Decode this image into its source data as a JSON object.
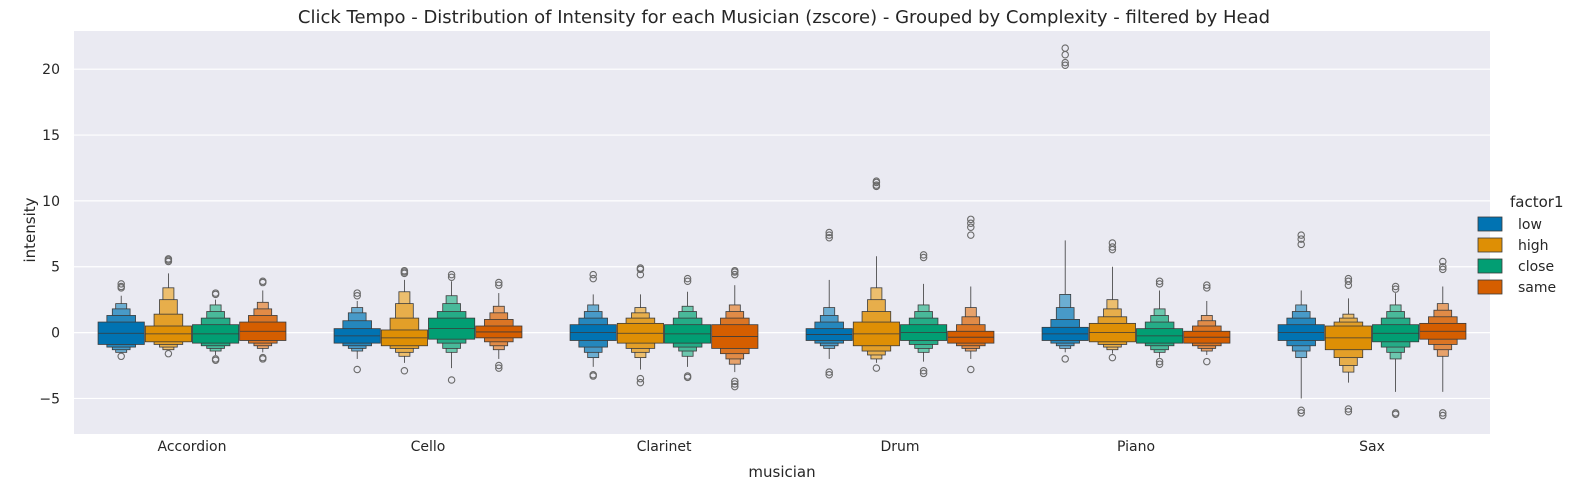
{
  "chart_data": {
    "type": "boxen",
    "title": "Click Tempo - Distribution of Intensity for each Musician (zscore) - Grouped by Complexity - filtered by Head",
    "xlabel": "musician",
    "ylabel": "intensity",
    "ylim": [
      -7.7,
      22.9
    ],
    "yticks": [
      -5,
      0,
      5,
      10,
      15,
      20
    ],
    "grid": true,
    "legend_title": "factor1",
    "legend_position": "right",
    "categories": [
      "Accordion",
      "Cello",
      "Clarinet",
      "Drum",
      "Piano",
      "Sax"
    ],
    "series": [
      {
        "name": "low",
        "color": "#0173b2",
        "values": [
          {
            "levels": [
              [
                -0.9,
                0.8
              ],
              [
                -1.1,
                1.3
              ],
              [
                -1.3,
                1.8
              ],
              [
                -1.5,
                2.2
              ]
            ],
            "whisker": [
              -1.6,
              2.8
            ],
            "outliers": [
              -1.8,
              3.4,
              3.5,
              3.7
            ]
          },
          {
            "levels": [
              [
                -0.8,
                0.3
              ],
              [
                -1.0,
                0.9
              ],
              [
                -1.2,
                1.5
              ],
              [
                -1.4,
                1.9
              ]
            ],
            "whisker": [
              -2.0,
              2.4
            ],
            "outliers": [
              -2.8,
              2.8,
              3.0
            ]
          },
          {
            "levels": [
              [
                -0.6,
                0.6
              ],
              [
                -1.1,
                1.1
              ],
              [
                -1.5,
                1.6
              ],
              [
                -1.9,
                2.1
              ]
            ],
            "whisker": [
              -2.6,
              2.9
            ],
            "outliers": [
              -3.2,
              -3.3,
              4.1,
              4.4
            ]
          },
          {
            "levels": [
              [
                -0.6,
                0.3
              ],
              [
                -0.8,
                0.8
              ],
              [
                -1.0,
                1.3
              ],
              [
                -1.2,
                1.9
              ]
            ],
            "whisker": [
              -2.0,
              4.0
            ],
            "outliers": [
              -3.0,
              -3.2,
              7.2,
              7.4,
              7.6
            ]
          },
          {
            "levels": [
              [
                -0.6,
                0.4
              ],
              [
                -0.8,
                1.0
              ],
              [
                -1.0,
                1.9
              ],
              [
                -1.2,
                2.9
              ]
            ],
            "whisker": [
              -1.5,
              7.0
            ],
            "outliers": [
              -2.0,
              20.3,
              20.5,
              21.1,
              21.6
            ]
          },
          {
            "levels": [
              [
                -0.6,
                0.6
              ],
              [
                -1.0,
                1.1
              ],
              [
                -1.4,
                1.6
              ],
              [
                -1.9,
                2.1
              ]
            ],
            "whisker": [
              -5.0,
              3.2
            ],
            "outliers": [
              -5.9,
              -6.1,
              6.7,
              7.1,
              7.4
            ]
          }
        ]
      },
      {
        "name": "high",
        "color": "#de8f05",
        "values": [
          {
            "levels": [
              [
                -0.7,
                0.5
              ],
              [
                -0.9,
                1.4
              ],
              [
                -1.1,
                2.5
              ],
              [
                -1.3,
                3.4
              ]
            ],
            "whisker": [
              -1.4,
              4.5
            ],
            "outliers": [
              -1.6,
              5.4,
              5.5,
              5.6
            ]
          },
          {
            "levels": [
              [
                -1.0,
                0.2
              ],
              [
                -1.2,
                1.1
              ],
              [
                -1.5,
                2.2
              ],
              [
                -1.8,
                3.1
              ]
            ],
            "whisker": [
              -2.3,
              4.0
            ],
            "outliers": [
              -2.9,
              4.5,
              4.6,
              4.7
            ]
          },
          {
            "levels": [
              [
                -0.8,
                0.7
              ],
              [
                -1.2,
                1.1
              ],
              [
                -1.5,
                1.5
              ],
              [
                -1.9,
                1.9
              ]
            ],
            "whisker": [
              -2.8,
              2.9
            ],
            "outliers": [
              -3.5,
              -3.8,
              4.4,
              4.8,
              4.9
            ]
          },
          {
            "levels": [
              [
                -1.0,
                0.8
              ],
              [
                -1.4,
                1.6
              ],
              [
                -1.7,
                2.5
              ],
              [
                -2.0,
                3.4
              ]
            ],
            "whisker": [
              -2.3,
              5.8
            ],
            "outliers": [
              -2.7,
              11.1,
              11.2,
              11.4,
              11.5
            ]
          },
          {
            "levels": [
              [
                -0.7,
                0.7
              ],
              [
                -0.9,
                1.2
              ],
              [
                -1.1,
                1.8
              ],
              [
                -1.3,
                2.5
              ]
            ],
            "whisker": [
              -1.6,
              5.0
            ],
            "outliers": [
              -1.9,
              6.3,
              6.5,
              6.8
            ]
          },
          {
            "levels": [
              [
                -1.3,
                0.5
              ],
              [
                -1.9,
                0.8
              ],
              [
                -2.5,
                1.1
              ],
              [
                -3.0,
                1.4
              ]
            ],
            "whisker": [
              -3.8,
              2.6
            ],
            "outliers": [
              -5.8,
              -6.0,
              3.6,
              3.9,
              4.1
            ]
          }
        ]
      },
      {
        "name": "close",
        "color": "#029e73",
        "values": [
          {
            "levels": [
              [
                -0.8,
                0.6
              ],
              [
                -1.0,
                1.1
              ],
              [
                -1.2,
                1.6
              ],
              [
                -1.4,
                2.1
              ]
            ],
            "whisker": [
              -1.7,
              2.5
            ],
            "outliers": [
              -2.0,
              -2.1,
              2.9,
              3.0
            ]
          },
          {
            "levels": [
              [
                -0.5,
                1.1
              ],
              [
                -0.8,
                1.6
              ],
              [
                -1.2,
                2.2
              ],
              [
                -1.5,
                2.8
              ]
            ],
            "whisker": [
              -2.7,
              3.9
            ],
            "outliers": [
              -3.6,
              4.2,
              4.4
            ]
          },
          {
            "levels": [
              [
                -0.8,
                0.6
              ],
              [
                -1.1,
                1.1
              ],
              [
                -1.4,
                1.6
              ],
              [
                -1.8,
                2.0
              ]
            ],
            "whisker": [
              -2.6,
              3.1
            ],
            "outliers": [
              -3.3,
              -3.4,
              3.9,
              4.1
            ]
          },
          {
            "levels": [
              [
                -0.6,
                0.6
              ],
              [
                -0.9,
                1.1
              ],
              [
                -1.2,
                1.6
              ],
              [
                -1.5,
                2.1
              ]
            ],
            "whisker": [
              -2.2,
              3.7
            ],
            "outliers": [
              -2.9,
              -3.1,
              5.7,
              5.9
            ]
          },
          {
            "levels": [
              [
                -0.8,
                0.3
              ],
              [
                -1.0,
                0.8
              ],
              [
                -1.3,
                1.3
              ],
              [
                -1.5,
                1.8
              ]
            ],
            "whisker": [
              -1.9,
              3.2
            ],
            "outliers": [
              -2.2,
              -2.4,
              3.7,
              3.9
            ]
          },
          {
            "levels": [
              [
                -0.7,
                0.6
              ],
              [
                -1.1,
                1.1
              ],
              [
                -1.5,
                1.6
              ],
              [
                -2.0,
                2.1
              ]
            ],
            "whisker": [
              -4.5,
              3.0
            ],
            "outliers": [
              -6.1,
              -6.2,
              3.3,
              3.5
            ]
          }
        ]
      },
      {
        "name": "same",
        "color": "#d55e00",
        "values": [
          {
            "levels": [
              [
                -0.6,
                0.8
              ],
              [
                -0.8,
                1.3
              ],
              [
                -1.0,
                1.8
              ],
              [
                -1.2,
                2.3
              ]
            ],
            "whisker": [
              -1.5,
              3.2
            ],
            "outliers": [
              -1.9,
              -2.0,
              3.8,
              3.9
            ]
          },
          {
            "levels": [
              [
                -0.4,
                0.5
              ],
              [
                -0.7,
                1.0
              ],
              [
                -1.0,
                1.5
              ],
              [
                -1.3,
                2.0
              ]
            ],
            "whisker": [
              -2.0,
              3.0
            ],
            "outliers": [
              -2.5,
              -2.7,
              3.6,
              3.8
            ]
          },
          {
            "levels": [
              [
                -1.2,
                0.6
              ],
              [
                -1.6,
                1.1
              ],
              [
                -2.0,
                1.6
              ],
              [
                -2.4,
                2.1
              ]
            ],
            "whisker": [
              -3.0,
              3.6
            ],
            "outliers": [
              -3.7,
              -3.9,
              -4.1,
              4.4,
              4.6,
              4.7
            ]
          },
          {
            "levels": [
              [
                -0.8,
                0.1
              ],
              [
                -1.0,
                0.6
              ],
              [
                -1.2,
                1.2
              ],
              [
                -1.4,
                1.9
              ]
            ],
            "whisker": [
              -2.0,
              3.5
            ],
            "outliers": [
              -2.8,
              7.4,
              8.0,
              8.3,
              8.6
            ]
          },
          {
            "levels": [
              [
                -0.8,
                0.1
              ],
              [
                -1.0,
                0.5
              ],
              [
                -1.2,
                0.9
              ],
              [
                -1.4,
                1.3
              ]
            ],
            "whisker": [
              -1.7,
              2.4
            ],
            "outliers": [
              -2.2,
              3.4,
              3.6
            ]
          },
          {
            "levels": [
              [
                -0.5,
                0.7
              ],
              [
                -0.9,
                1.2
              ],
              [
                -1.3,
                1.7
              ],
              [
                -1.8,
                2.2
              ]
            ],
            "whisker": [
              -4.5,
              3.5
            ],
            "outliers": [
              -6.1,
              -6.3,
              4.8,
              5.0,
              5.4
            ]
          }
        ]
      }
    ]
  }
}
